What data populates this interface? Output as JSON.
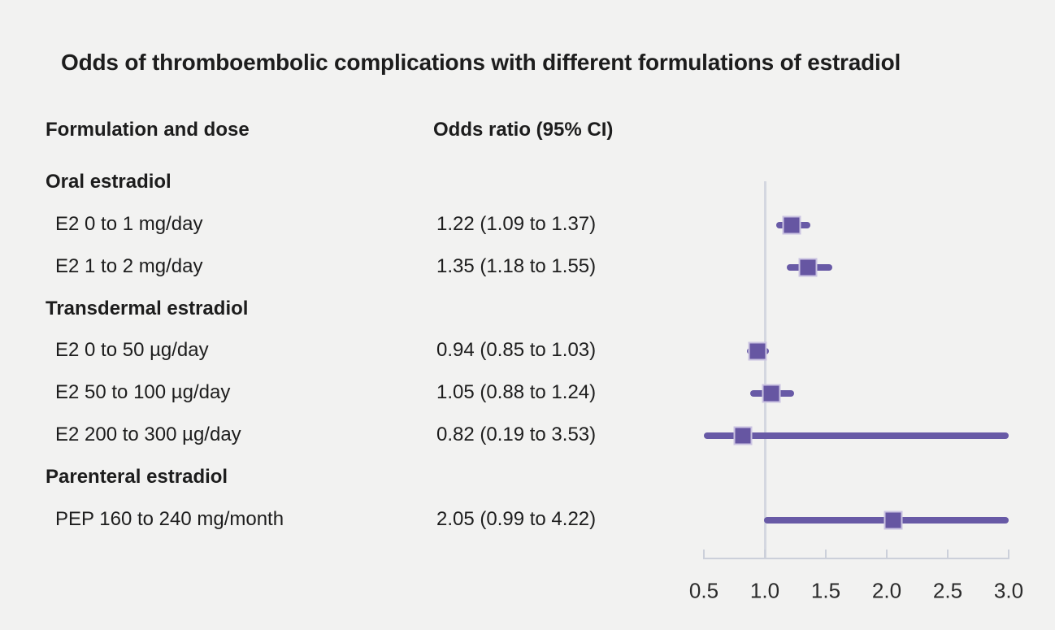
{
  "title": "Odds of thromboembolic complications with different formulations of estradiol",
  "columns": {
    "formulation": "Formulation and dose",
    "odds_ratio": "Odds ratio (95% CI)"
  },
  "chart_data": {
    "type": "forest",
    "title": "Odds of thromboembolic complications with different formulations of estradiol",
    "xlabel": "Odds ratio (95% CI)",
    "axis": {
      "min": 0.5,
      "max": 3.0,
      "tick_values": [
        0.5,
        1.0,
        1.5,
        2.0,
        2.5,
        3.0
      ],
      "tick_labels": [
        "0.5",
        "1.0",
        "1.5",
        "2.0",
        "2.5",
        "3.0"
      ],
      "reference_line": 1.0,
      "clip_ci_to_axis": true,
      "grid": false
    },
    "rows": [
      {
        "type": "group",
        "label": "Oral estradiol"
      },
      {
        "type": "item",
        "label": "E2 0 to 1 mg/day",
        "or_text": "1.22 (1.09 to 1.37)",
        "value": 1.22,
        "ci_low": 1.09,
        "ci_high": 1.37
      },
      {
        "type": "item",
        "label": "E2 1 to 2 mg/day",
        "or_text": "1.35 (1.18 to 1.55)",
        "value": 1.35,
        "ci_low": 1.18,
        "ci_high": 1.55
      },
      {
        "type": "group",
        "label": "Transdermal estradiol"
      },
      {
        "type": "item",
        "label": "E2 0 to 50 µg/day",
        "or_text": "0.94 (0.85 to 1.03)",
        "value": 0.94,
        "ci_low": 0.85,
        "ci_high": 1.03
      },
      {
        "type": "item",
        "label": "E2 50 to 100 µg/day",
        "or_text": "1.05 (0.88 to 1.24)",
        "value": 1.05,
        "ci_low": 0.88,
        "ci_high": 1.24
      },
      {
        "type": "item",
        "label": "E2 200 to 300 µg/day",
        "or_text": "0.82 (0.19 to 3.53)",
        "value": 0.82,
        "ci_low": 0.19,
        "ci_high": 3.53
      },
      {
        "type": "group",
        "label": "Parenteral estradiol"
      },
      {
        "type": "item",
        "label": "PEP 160 to 240 mg/month",
        "or_text": "2.05 (0.99 to 4.22)",
        "value": 2.05,
        "ci_low": 0.99,
        "ci_high": 4.22
      }
    ]
  },
  "colors": {
    "background": "#f2f2f1",
    "text": "#1d1d1d",
    "marker": "#6656a2",
    "ci_line": "#685aa6",
    "marker_outline": "#cac3e1",
    "reference_line": "#d4d7e0",
    "axis_line": "#ccd0da"
  }
}
